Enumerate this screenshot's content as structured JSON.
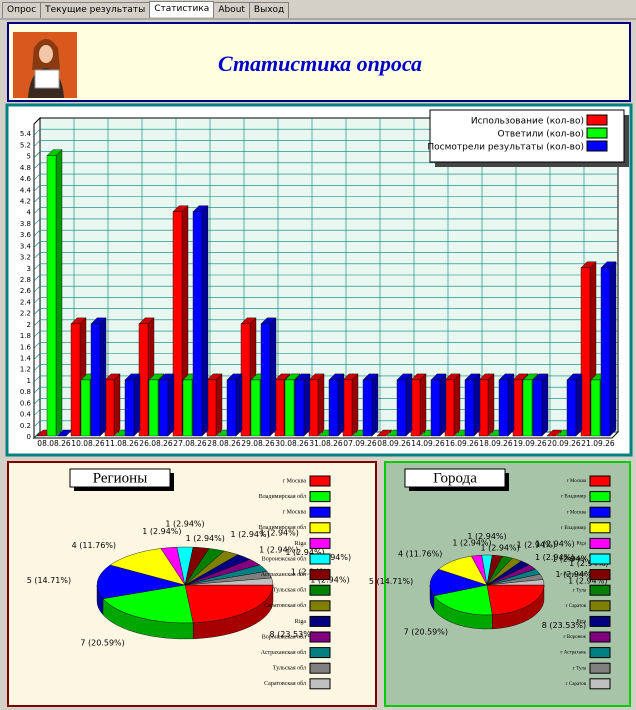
{
  "tabs": [
    "Опрос",
    "Текущие результаты",
    "Статистика",
    "About",
    "Выход"
  ],
  "header": {
    "title": "Статистика опроса"
  },
  "chart_data": [
    {
      "type": "bar",
      "categories": [
        "08.08.26",
        "10.08.26",
        "11.08.26",
        "26.08.26",
        "27.08.26",
        "28.08.26",
        "29.08.26",
        "30.08.26",
        "31.08.26",
        "07.09.26",
        "08.09.26",
        "14.09.26",
        "16.09.26",
        "18.09.26",
        "19.09.26",
        "20.09.26",
        "21.09.26"
      ],
      "series": [
        {
          "name": "Использование (кол-во)",
          "color": "#ff0000",
          "values": [
            0,
            2,
            1,
            2,
            4,
            1,
            2,
            1,
            1,
            1,
            0,
            1,
            1,
            1,
            1,
            0,
            3
          ]
        },
        {
          "name": "Ответили (кол-во)",
          "color": "#00ff00",
          "values": [
            5,
            1,
            0,
            1,
            1,
            0,
            1,
            1,
            0,
            0,
            0,
            0,
            0,
            0,
            1,
            0,
            1
          ]
        },
        {
          "name": "Посмотрели результаты (кол-во)",
          "color": "#0000ff",
          "values": [
            0,
            2,
            1,
            1,
            4,
            1,
            2,
            1,
            1,
            1,
            1,
            1,
            1,
            1,
            1,
            1,
            3
          ]
        }
      ],
      "ylim": [
        0,
        5.6
      ],
      "yticks": [
        0,
        0.2,
        0.4,
        0.6,
        0.8,
        1,
        1.2,
        1.4,
        1.6,
        1.8,
        2,
        2.2,
        2.4,
        2.6,
        2.8,
        3,
        3.2,
        3.4,
        3.6,
        3.8,
        4,
        4.2,
        4.4,
        4.6,
        4.8,
        5,
        5.2,
        5.4
      ],
      "grid": true,
      "legend": "top-right"
    },
    {
      "type": "pie",
      "title": "Регионы",
      "categories": [
        "г Москва",
        "Владимирская обл",
        "г Москва",
        "Владимирская обл",
        "Riga",
        "Воронежская обл",
        "Астраханская обл",
        "Тульская обл",
        "Саратовская обл",
        "Riga",
        "Воронежская обл",
        "Астраханская обл",
        "Тульская обл",
        "Саратовская обл"
      ],
      "values": [
        8,
        7,
        5,
        4,
        1,
        1,
        1,
        1,
        1,
        1,
        1,
        1,
        1,
        1
      ],
      "value_labels": [
        "8 (23.53%)",
        "7 (20.59%)",
        "5 (14.71%)",
        "4 (11.76%)",
        "1 (2.94%)",
        "1 (2.94%)",
        "1 (2.94%)",
        "1 (2.94%)",
        "1 (2.94%)",
        "1 (2.94%)",
        "1 (2.94%)",
        "1 (2.94%)",
        "1 (2.94%)",
        "1 (2.94%)"
      ],
      "colors": [
        "#ff0000",
        "#00ff00",
        "#0000ff",
        "#ffff00",
        "#ff00ff",
        "#00ffff",
        "#800000",
        "#008000",
        "#808000",
        "#000080",
        "#800080",
        "#008080",
        "#808080",
        "#c0c0c0"
      ],
      "legend": "right"
    },
    {
      "type": "pie",
      "title": "Города",
      "categories": [
        "г Москва",
        "г Владимир",
        "г Москва",
        "г Владимир",
        "Riga",
        "г Воронеж",
        "г Астрахань",
        "г Тула",
        "г Саратов",
        "Riga",
        "г Воронеж",
        "г Астрахань",
        "г Тула",
        "г Саратов"
      ],
      "values": [
        8,
        7,
        5,
        4,
        1,
        1,
        1,
        1,
        1,
        1,
        1,
        1,
        1,
        1
      ],
      "value_labels": [
        "8 (23.53%)",
        "7 (20.59%)",
        "5 (14.71%)",
        "4 (11.76%)",
        "1 (2.94%)",
        "1 (2.94%)",
        "1 (2.94%)",
        "1 (2.94%)",
        "1 (2.94%)",
        "1 (2.94%)",
        "1 (2.94%)",
        "1 (2.94%)",
        "1 (2.94%)",
        "1 (2.94%)"
      ],
      "colors": [
        "#ff0000",
        "#00ff00",
        "#0000ff",
        "#ffff00",
        "#ff00ff",
        "#00ffff",
        "#800000",
        "#008000",
        "#808000",
        "#000080",
        "#800080",
        "#008080",
        "#808080",
        "#c0c0c0"
      ],
      "legend": "right"
    }
  ]
}
